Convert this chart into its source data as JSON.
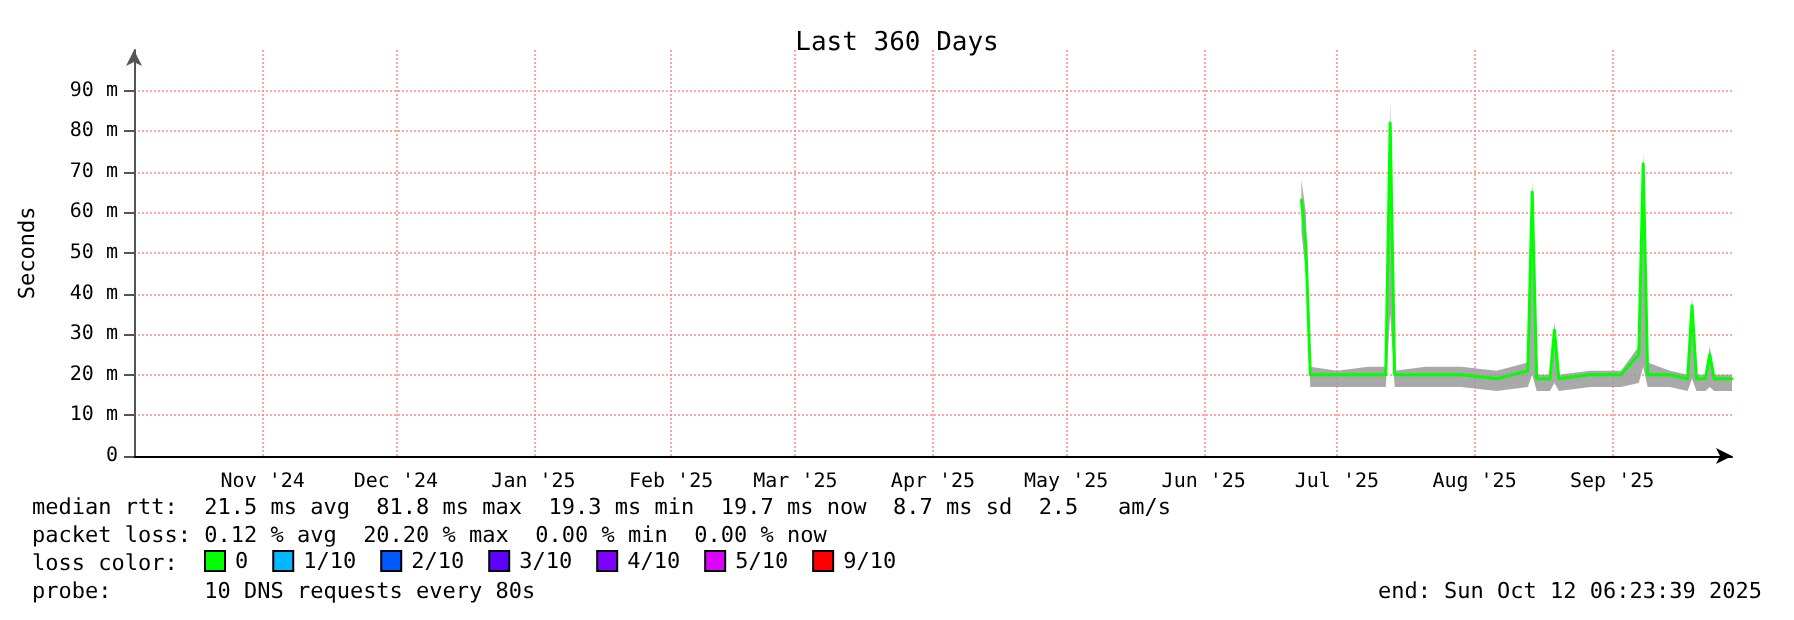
{
  "chart_data": {
    "type": "line",
    "title": "Last 360 Days",
    "ylabel": "Seconds",
    "legend_title": "loss color:",
    "xlim": [
      "2024-10-17",
      "2025-10-12"
    ],
    "xticks": [
      {
        "value": "2024-11-15",
        "label": "Nov '24"
      },
      {
        "value": "2024-12-15",
        "label": "Dec '24"
      },
      {
        "value": "2025-01-15",
        "label": "Jan '25"
      },
      {
        "value": "2025-02-15",
        "label": "Feb '25"
      },
      {
        "value": "2025-03-15",
        "label": "Mar '25"
      },
      {
        "value": "2025-04-15",
        "label": "Apr '25"
      },
      {
        "value": "2025-05-15",
        "label": "May '25"
      },
      {
        "value": "2025-06-15",
        "label": "Jun '25"
      },
      {
        "value": "2025-07-15",
        "label": "Jul '25"
      },
      {
        "value": "2025-08-15",
        "label": "Aug '25"
      },
      {
        "value": "2025-09-15",
        "label": "Sep '25"
      }
    ],
    "ylim": [
      0,
      100
    ],
    "yticks": [
      0,
      {
        "value": 10,
        "label": "10 m"
      },
      {
        "value": 20,
        "label": "20 m"
      },
      {
        "value": 30,
        "label": "30 m"
      },
      {
        "value": 40,
        "label": "40 m"
      },
      {
        "value": 50,
        "label": "50 m"
      },
      {
        "value": 60,
        "label": "60 m"
      },
      {
        "value": 70,
        "label": "70 m"
      },
      {
        "value": 80,
        "label": "80 m"
      },
      {
        "value": 90,
        "label": "90 m"
      }
    ],
    "x": [
      "2025-07-07",
      "2025-07-08",
      "2025-07-09",
      "2025-07-15",
      "2025-07-22",
      "2025-07-26",
      "2025-07-27",
      "2025-07-28",
      "2025-08-04",
      "2025-08-12",
      "2025-08-20",
      "2025-08-27",
      "2025-08-28",
      "2025-08-29",
      "2025-09-01",
      "2025-09-02",
      "2025-09-03",
      "2025-09-10",
      "2025-09-17",
      "2025-09-21",
      "2025-09-22",
      "2025-09-23",
      "2025-09-28",
      "2025-10-02",
      "2025-10-03",
      "2025-10-04",
      "2025-10-06",
      "2025-10-07",
      "2025-10-08",
      "2025-10-12"
    ],
    "series": [
      {
        "name": "0",
        "color": "#00ff00",
        "values": [
          63,
          52,
          20,
          20,
          20,
          20,
          82,
          20,
          20,
          20,
          19,
          21,
          65,
          19,
          19,
          31,
          19,
          20,
          20,
          25,
          72,
          20,
          20,
          19,
          37,
          19,
          19,
          25,
          19,
          19
        ],
        "lower": [
          55,
          45,
          17,
          17,
          17,
          17,
          35,
          17,
          17,
          17,
          16,
          17,
          20,
          16,
          16,
          18,
          16,
          17,
          17,
          18,
          22,
          17,
          17,
          16,
          19,
          16,
          16,
          17,
          16,
          16
        ],
        "upper": [
          68,
          60,
          22,
          21,
          22,
          22,
          87,
          21,
          22,
          22,
          21,
          23,
          68,
          20,
          20,
          33,
          20,
          21,
          21,
          27,
          75,
          23,
          21,
          20,
          39,
          20,
          20,
          27,
          20,
          20
        ]
      },
      {
        "name": "1/10",
        "color": "#00b8ff",
        "values": [
          null,
          null,
          null,
          null,
          null,
          null,
          null,
          null,
          null,
          null,
          null,
          null,
          null,
          null,
          null,
          null,
          null,
          null,
          null,
          null,
          null,
          null,
          null,
          null,
          null,
          null,
          null,
          null,
          null,
          null
        ]
      },
      {
        "name": "2/10",
        "color": "#0059ff",
        "values": [
          null,
          null,
          null,
          null,
          null,
          null,
          null,
          null,
          null,
          null,
          null,
          null,
          null,
          null,
          null,
          null,
          null,
          null,
          null,
          null,
          null,
          null,
          null,
          null,
          null,
          null,
          null,
          null,
          null,
          null
        ]
      },
      {
        "name": "3/10",
        "color": "#5e00ff",
        "values": [
          null,
          null,
          null,
          null,
          null,
          null,
          null,
          null,
          null,
          null,
          null,
          null,
          null,
          null,
          null,
          null,
          null,
          null,
          null,
          null,
          null,
          null,
          null,
          null,
          null,
          null,
          null,
          null,
          null,
          null
        ]
      },
      {
        "name": "4/10",
        "color": "#7e00ff",
        "values": [
          null,
          null,
          null,
          null,
          null,
          null,
          null,
          null,
          null,
          null,
          null,
          null,
          null,
          null,
          null,
          null,
          null,
          null,
          null,
          null,
          null,
          null,
          null,
          null,
          null,
          null,
          null,
          null,
          null,
          null
        ]
      },
      {
        "name": "5/10",
        "color": "#dd00ff",
        "values": [
          null,
          null,
          null,
          null,
          null,
          null,
          null,
          null,
          null,
          null,
          null,
          null,
          null,
          null,
          null,
          null,
          null,
          null,
          null,
          null,
          null,
          null,
          null,
          null,
          null,
          null,
          null,
          null,
          null,
          null
        ]
      },
      {
        "name": "9/10",
        "color": "#ff0000",
        "values": [
          null,
          null,
          null,
          null,
          null,
          null,
          null,
          null,
          null,
          null,
          null,
          null,
          null,
          null,
          null,
          null,
          null,
          null,
          null,
          null,
          null,
          null,
          null,
          null,
          null,
          null,
          null,
          null,
          null,
          null
        ]
      }
    ],
    "grid": true,
    "legend": "bottom",
    "marker": "none",
    "line_style": "solid",
    "annotations": [
      "median rtt:  21.5 ms avg  81.8 ms max  19.3 ms min  19.7 ms now  8.7 ms sd  2.5   am/s",
      "packet loss: 0.12 % avg  20.20 % max  0.00 % min  0.00 % now",
      "probe:       10 DNS requests every 80s",
      "end: Sun Oct 12 06:23:39 2025"
    ]
  }
}
